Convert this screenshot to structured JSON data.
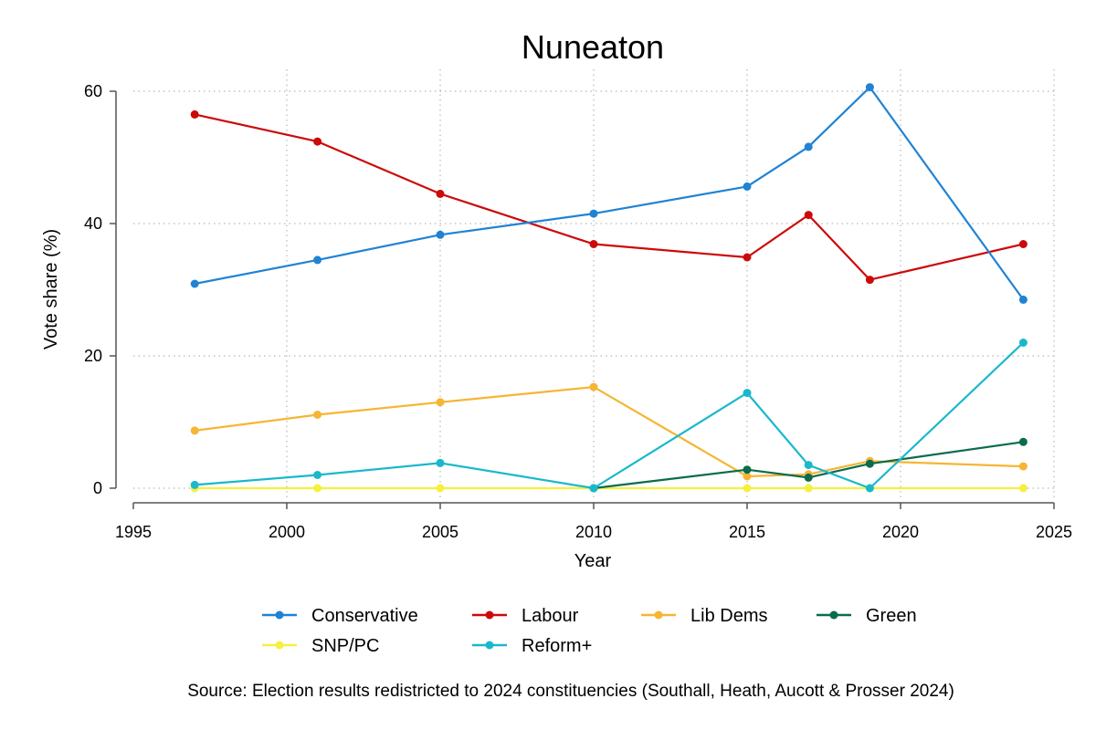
{
  "chart_data": {
    "type": "line",
    "title": "Nuneaton",
    "xlabel": "Year",
    "ylabel": "Vote share (%)",
    "xlim": [
      1995,
      2025
    ],
    "ylim": [
      0,
      60
    ],
    "xticks": [
      1995,
      2000,
      2005,
      2010,
      2015,
      2020,
      2025
    ],
    "yticks": [
      0,
      20,
      40,
      60
    ],
    "grid": true,
    "legend_position": "bottom",
    "x": [
      1997,
      2001,
      2005,
      2010,
      2015,
      2017,
      2019,
      2024
    ],
    "series": [
      {
        "name": "Conservative",
        "color": "#1f83d4",
        "values": [
          30.9,
          34.5,
          38.3,
          41.5,
          45.6,
          51.6,
          60.6,
          28.5
        ]
      },
      {
        "name": "Labour",
        "color": "#cc0a0a",
        "values": [
          56.5,
          52.4,
          44.5,
          36.9,
          34.9,
          41.3,
          31.5,
          36.9
        ]
      },
      {
        "name": "Lib Dems",
        "color": "#f6b533",
        "values": [
          8.7,
          11.1,
          13.0,
          15.3,
          1.8,
          2.1,
          4.1,
          3.3
        ]
      },
      {
        "name": "Green",
        "color": "#0b6b4e",
        "values": [
          null,
          null,
          null,
          0.0,
          2.8,
          1.6,
          3.7,
          7.0
        ]
      },
      {
        "name": "SNP/PC",
        "color": "#f5f03d",
        "values": [
          0,
          0,
          0,
          0,
          0,
          0,
          0,
          0
        ]
      },
      {
        "name": "Reform+",
        "color": "#1ab8cc",
        "values": [
          0.5,
          2.0,
          3.8,
          0.0,
          14.4,
          3.5,
          0.0,
          22.0
        ]
      }
    ],
    "source": "Source: Election results redistricted to 2024 constituencies (Southall, Heath, Aucott & Prosser 2024)"
  }
}
